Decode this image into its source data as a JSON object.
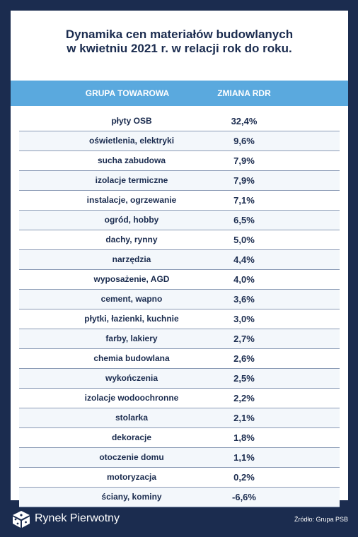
{
  "title_lines": [
    "Dynamika cen materiałów budowlanych",
    "w kwietniu 2021 r. w relacji rok do roku."
  ],
  "brand": "Rynek Pierwotny",
  "source": "Źródło: Grupa PSB",
  "colors": {
    "background": "#1b2c4f",
    "header": "#5aa9de",
    "text": "#1b2c4f"
  },
  "chart_data": {
    "type": "table",
    "title": "Dynamika cen materiałów budowlanych w kwietniu 2021 r. w relacji rok do roku.",
    "columns": [
      "GRUPA TOWAROWA",
      "ZMIANA RDR"
    ],
    "rows": [
      [
        "płyty OSB",
        "32,4%"
      ],
      [
        "oświetlenia, elektryki",
        "9,6%"
      ],
      [
        "sucha zabudowa",
        "7,9%"
      ],
      [
        "izolacje termiczne",
        "7,9%"
      ],
      [
        "instalacje, ogrzewanie",
        "7,1%"
      ],
      [
        "ogród, hobby",
        "6,5%"
      ],
      [
        "dachy, rynny",
        "5,0%"
      ],
      [
        "narzędzia",
        "4,4%"
      ],
      [
        "wyposażenie, AGD",
        "4,0%"
      ],
      [
        "cement, wapno",
        "3,6%"
      ],
      [
        "płytki, łazienki, kuchnie",
        "3,0%"
      ],
      [
        "farby, lakiery",
        "2,7%"
      ],
      [
        "chemia budowlana",
        "2,6%"
      ],
      [
        "wykończenia",
        "2,5%"
      ],
      [
        "izolacje wodoochronne",
        "2,2%"
      ],
      [
        "stolarka",
        "2,1%"
      ],
      [
        "dekoracje",
        "1,8%"
      ],
      [
        "otoczenie domu",
        "1,1%"
      ],
      [
        "motoryzacja",
        "0,2%"
      ],
      [
        "ściany, kominy",
        "-6,6%"
      ]
    ]
  }
}
